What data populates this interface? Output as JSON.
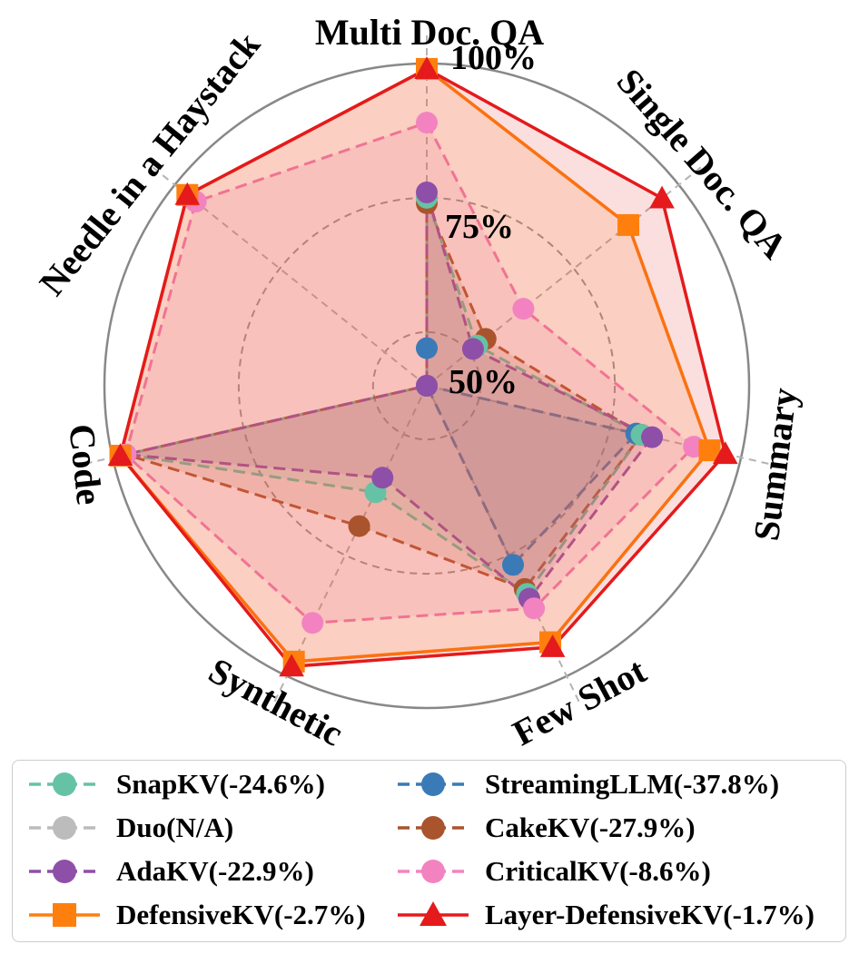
{
  "chart_data": {
    "type": "radar",
    "title": "",
    "axes": [
      "Multi Doc. QA",
      "Single Doc. QA",
      "Summary",
      "Few Shot",
      "Synthetic",
      "Code",
      "Needle in a Haystack"
    ],
    "radial_ticks": [
      "50%",
      "75%",
      "100%"
    ],
    "radial_tick_values": [
      50,
      75,
      100
    ],
    "range": [
      40,
      100
    ],
    "series": [
      {
        "name": "StreamingLLM(-37.8%)",
        "color": "#3a7ab7",
        "marker": "circle",
        "dashed": true,
        "filled": true,
        "values": [
          47,
          40,
          80,
          77,
          40,
          40,
          40
        ]
      },
      {
        "name": "Duo(N/A)",
        "color": "#bcbcbc",
        "marker": "circle",
        "dashed": true,
        "filled": false,
        "values": [
          null,
          null,
          null,
          null,
          null,
          null,
          null
        ]
      },
      {
        "name": "CakeKV(-27.9%)",
        "color": "#a9542c",
        "marker": "circle",
        "dashed": true,
        "filled": true,
        "values": [
          74,
          54,
          81,
          82,
          69,
          97.5,
          40
        ]
      },
      {
        "name": "SnapKV(-24.6%)",
        "color": "#66c2a5",
        "marker": "circle",
        "dashed": true,
        "filled": true,
        "values": [
          75,
          52,
          81,
          83,
          62,
          97.5,
          40
        ]
      },
      {
        "name": "AdaKV(-22.9%)",
        "color": "#8e4fa8",
        "marker": "circle",
        "dashed": true,
        "filled": true,
        "values": [
          76,
          51,
          83,
          84,
          59,
          97.5,
          40
        ]
      },
      {
        "name": "CriticalKV(-8.6%)",
        "color": "#f283c0",
        "marker": "circle",
        "dashed": true,
        "filled": true,
        "values": [
          89,
          63,
          91,
          86,
          89,
          97.5,
          95
        ]
      },
      {
        "name": "DefensiveKV(-2.7%)",
        "color": "#ff7f0e",
        "marker": "square",
        "dashed": false,
        "filled": true,
        "values": [
          99,
          88,
          94,
          93,
          97,
          98.5,
          97
        ]
      },
      {
        "name": "Layer-DefensiveKV(-1.7%)",
        "color": "#e41a1c",
        "marker": "triangle",
        "dashed": false,
        "filled": true,
        "values": [
          99,
          96,
          97,
          94,
          98,
          98.5,
          97
        ]
      }
    ],
    "legend_order": [
      "SnapKV(-24.6%)",
      "StreamingLLM(-37.8%)",
      "Duo(N/A)",
      "CakeKV(-27.9%)",
      "AdaKV(-22.9%)",
      "CriticalKV(-8.6%)",
      "DefensiveKV(-2.7%)",
      "Layer-DefensiveKV(-1.7%)"
    ],
    "legend_placement": "bottom",
    "grid": true
  }
}
